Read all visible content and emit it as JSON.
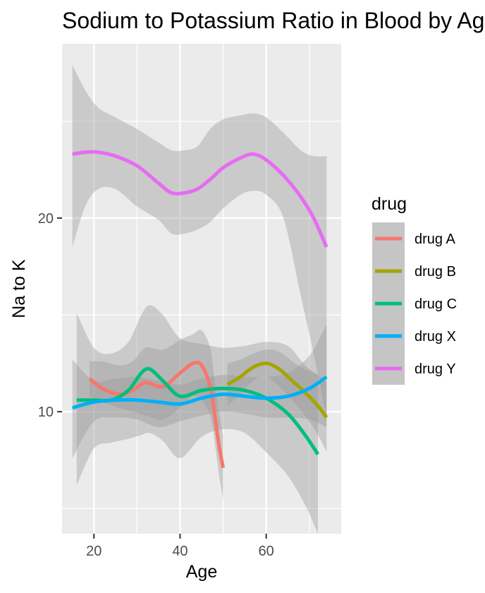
{
  "chart_data": {
    "type": "line",
    "title": "Sodium to Potassium Ratio in Blood by Age",
    "xlabel": "Age",
    "ylabel": "Na to K",
    "xlim": [
      12.6,
      77.4
    ],
    "ylim": [
      3.7,
      29.0
    ],
    "x_ticks": [
      20,
      40,
      60
    ],
    "y_ticks": [
      10,
      20
    ],
    "grid": true,
    "legend": {
      "title": "drug",
      "position": "right"
    },
    "colors": {
      "panel_bg": "#ebebeb",
      "grid": "#ffffff",
      "ribbon": "#999999",
      "legend_key_bg": "#c5c5c5"
    },
    "series": [
      {
        "name": "drug A",
        "color": "#F8766D",
        "x": [
          19,
          22,
          26,
          29,
          32,
          36,
          40,
          43,
          45,
          47,
          48,
          49,
          50
        ],
        "y": [
          11.7,
          11.2,
          10.9,
          11.1,
          11.5,
          11.3,
          12.0,
          12.5,
          12.4,
          11.3,
          9.9,
          8.3,
          7.1
        ],
        "lower": [
          10.8,
          10.5,
          10.2,
          10.0,
          9.8,
          9.6,
          10.2,
          10.8,
          10.6,
          9.8,
          8.5,
          6.8,
          5.5
        ],
        "upper": [
          12.6,
          12.6,
          12.4,
          12.6,
          13.3,
          13.2,
          13.7,
          14.0,
          14.2,
          13.3,
          11.6,
          10.0,
          8.8
        ]
      },
      {
        "name": "drug B",
        "color": "#A3A500",
        "x": [
          51,
          54,
          57,
          60,
          63,
          66,
          69,
          72,
          74
        ],
        "y": [
          11.4,
          11.8,
          12.3,
          12.5,
          12.2,
          11.6,
          11.0,
          10.3,
          9.7
        ],
        "lower": [
          10.3,
          10.9,
          11.6,
          11.8,
          11.3,
          10.6,
          9.8,
          8.8,
          7.9
        ],
        "upper": [
          12.5,
          12.7,
          13.0,
          13.2,
          13.1,
          12.6,
          12.2,
          11.9,
          11.5
        ]
      },
      {
        "name": "drug C",
        "color": "#00BF7D",
        "x": [
          16,
          20,
          24,
          28,
          31,
          33,
          36,
          40,
          45,
          50,
          55,
          60,
          65,
          69,
          72
        ],
        "y": [
          10.6,
          10.6,
          10.6,
          11.1,
          12.0,
          12.2,
          11.6,
          10.8,
          11.1,
          11.2,
          11.1,
          10.7,
          9.9,
          8.8,
          7.8
        ],
        "lower": [
          6.2,
          8.1,
          8.4,
          8.6,
          8.8,
          8.9,
          8.5,
          7.6,
          8.7,
          9.1,
          8.9,
          7.9,
          6.7,
          5.2,
          3.7
        ],
        "upper": [
          15.1,
          13.3,
          13.0,
          13.6,
          15.0,
          15.5,
          15.0,
          13.8,
          13.5,
          13.3,
          13.4,
          13.6,
          13.4,
          12.4,
          11.9
        ]
      },
      {
        "name": "drug X",
        "color": "#00B0F6",
        "x": [
          15,
          20,
          25,
          30,
          35,
          40,
          45,
          50,
          55,
          60,
          65,
          70,
          74
        ],
        "y": [
          10.2,
          10.5,
          10.6,
          10.6,
          10.5,
          10.4,
          10.7,
          10.9,
          10.8,
          10.7,
          10.8,
          11.2,
          11.8
        ],
        "lower": [
          7.6,
          9.5,
          9.7,
          9.6,
          9.2,
          9.5,
          9.8,
          10.0,
          9.9,
          9.7,
          9.7,
          9.6,
          9.2
        ],
        "upper": [
          12.7,
          11.6,
          11.7,
          11.8,
          11.6,
          11.4,
          11.7,
          11.9,
          11.8,
          11.8,
          12.0,
          12.9,
          14.5
        ]
      },
      {
        "name": "drug Y",
        "color": "#E76BF3",
        "x": [
          15,
          18,
          21,
          25,
          30,
          35,
          38,
          41,
          44,
          47,
          50,
          54,
          57,
          60,
          64,
          68,
          71,
          74
        ],
        "y": [
          23.3,
          23.4,
          23.4,
          23.2,
          22.7,
          21.8,
          21.3,
          21.3,
          21.5,
          22.0,
          22.6,
          23.1,
          23.3,
          23.0,
          22.2,
          21.1,
          20.0,
          18.5
        ],
        "lower": [
          18.5,
          20.6,
          21.5,
          21.5,
          20.6,
          19.9,
          19.2,
          19.2,
          19.4,
          19.8,
          20.5,
          21.2,
          21.4,
          21.2,
          20.0,
          16.0,
          13.0,
          9.7
        ],
        "upper": [
          27.9,
          26.6,
          25.7,
          25.2,
          24.6,
          23.9,
          23.5,
          23.5,
          23.7,
          24.6,
          25.1,
          25.3,
          25.4,
          25.2,
          24.4,
          23.5,
          23.2,
          23.2
        ]
      }
    ]
  }
}
